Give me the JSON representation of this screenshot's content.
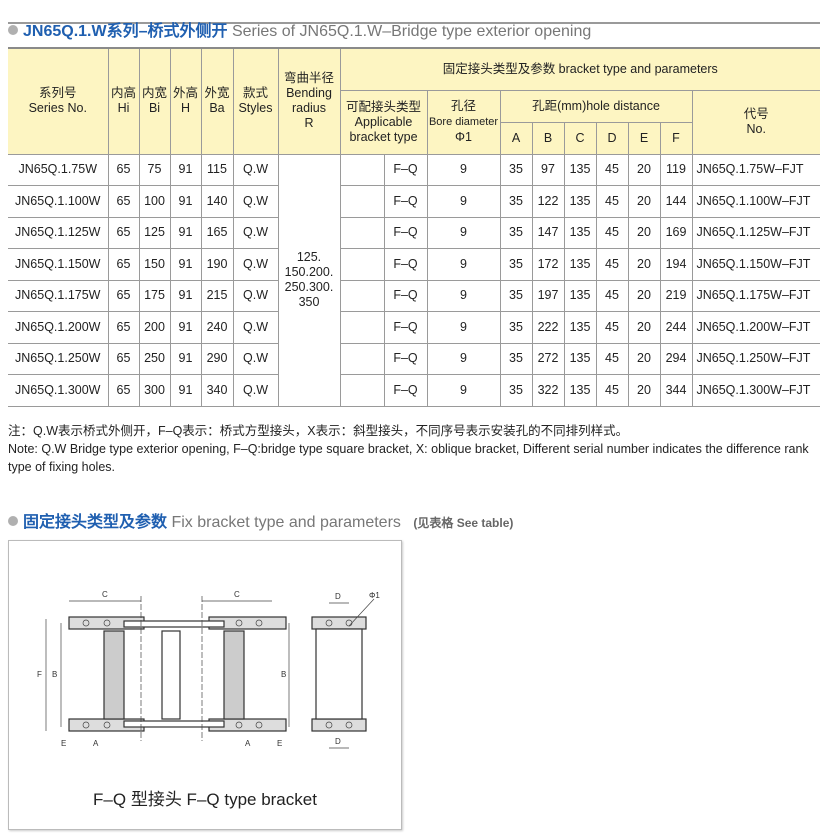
{
  "section1": {
    "title_cn": "JN65Q.1.W系列–桥式外侧开",
    "title_en": "Series of JN65Q.1.W–Bridge type exterior opening"
  },
  "table": {
    "headers": {
      "series_cn": "系列号",
      "series_en": "Series No.",
      "hi_cn": "内高",
      "hi_en": "Hi",
      "bi_cn": "内宽",
      "bi_en": "Bi",
      "h_cn": "外高",
      "h_en": "H",
      "ba_cn": "外宽",
      "ba_en": "Ba",
      "styles_cn": "款式",
      "styles_en": "Styles",
      "r_cn": "弯曲半径",
      "r_en1": "Bending",
      "r_en2": "radius",
      "r_en3": "R",
      "bracket": "固定接头类型及参数 bracket type and parameters",
      "type_cn": "可配接头类型",
      "type_en1": "Applicable",
      "type_en2": "bracket type",
      "bore_cn": "孔径",
      "bore_en": "Bore diameter",
      "bore_sym": "Φ1",
      "hole": "孔距(mm)hole distance",
      "cols": [
        "A",
        "B",
        "C",
        "D",
        "E",
        "F"
      ],
      "no_cn": "代号",
      "no_en": "No."
    },
    "bending_radius": [
      "125.",
      "150.200.",
      "250.300.",
      "350"
    ],
    "rows": [
      {
        "series": "JN65Q.1.75W",
        "hi": "65",
        "bi": "75",
        "h": "91",
        "ba": "115",
        "style": "Q.W",
        "type": "F–Q",
        "bore": "9",
        "a": "35",
        "b": "97",
        "c": "135",
        "d": "45",
        "e": "20",
        "f": "119",
        "no": "JN65Q.1.75W–FJT"
      },
      {
        "series": "JN65Q.1.100W",
        "hi": "65",
        "bi": "100",
        "h": "91",
        "ba": "140",
        "style": "Q.W",
        "type": "F–Q",
        "bore": "9",
        "a": "35",
        "b": "122",
        "c": "135",
        "d": "45",
        "e": "20",
        "f": "144",
        "no": "JN65Q.1.100W–FJT"
      },
      {
        "series": "JN65Q.1.125W",
        "hi": "65",
        "bi": "125",
        "h": "91",
        "ba": "165",
        "style": "Q.W",
        "type": "F–Q",
        "bore": "9",
        "a": "35",
        "b": "147",
        "c": "135",
        "d": "45",
        "e": "20",
        "f": "169",
        "no": "JN65Q.1.125W–FJT"
      },
      {
        "series": "JN65Q.1.150W",
        "hi": "65",
        "bi": "150",
        "h": "91",
        "ba": "190",
        "style": "Q.W",
        "type": "F–Q",
        "bore": "9",
        "a": "35",
        "b": "172",
        "c": "135",
        "d": "45",
        "e": "20",
        "f": "194",
        "no": "JN65Q.1.150W–FJT"
      },
      {
        "series": "JN65Q.1.175W",
        "hi": "65",
        "bi": "175",
        "h": "91",
        "ba": "215",
        "style": "Q.W",
        "type": "F–Q",
        "bore": "9",
        "a": "35",
        "b": "197",
        "c": "135",
        "d": "45",
        "e": "20",
        "f": "219",
        "no": "JN65Q.1.175W–FJT"
      },
      {
        "series": "JN65Q.1.200W",
        "hi": "65",
        "bi": "200",
        "h": "91",
        "ba": "240",
        "style": "Q.W",
        "type": "F–Q",
        "bore": "9",
        "a": "35",
        "b": "222",
        "c": "135",
        "d": "45",
        "e": "20",
        "f": "244",
        "no": "JN65Q.1.200W–FJT"
      },
      {
        "series": "JN65Q.1.250W",
        "hi": "65",
        "bi": "250",
        "h": "91",
        "ba": "290",
        "style": "Q.W",
        "type": "F–Q",
        "bore": "9",
        "a": "35",
        "b": "272",
        "c": "135",
        "d": "45",
        "e": "20",
        "f": "294",
        "no": "JN65Q.1.250W–FJT"
      },
      {
        "series": "JN65Q.1.300W",
        "hi": "65",
        "bi": "300",
        "h": "91",
        "ba": "340",
        "style": "Q.W",
        "type": "F–Q",
        "bore": "9",
        "a": "35",
        "b": "322",
        "c": "135",
        "d": "45",
        "e": "20",
        "f": "344",
        "no": "JN65Q.1.300W–FJT"
      }
    ]
  },
  "note": {
    "cn": "注：Q.W表示桥式外侧开，F–Q表示：桥式方型接头，X表示：斜型接头，不同序号表示安装孔的不同排列样式。",
    "en": "Note: Q.W Bridge type exterior opening, F–Q:bridge type square bracket, X: oblique bracket, Different serial number indicates the difference rank type of fixing holes."
  },
  "section2": {
    "title_cn": "固定接头类型及参数",
    "title_en": "Fix bracket type and parameters",
    "hint": "(见表格 See table)"
  },
  "diagram": {
    "caption": "F–Q 型接头   F–Q type bracket",
    "labels": {
      "c": "C",
      "b": "B",
      "f": "F",
      "a": "A",
      "e": "E",
      "d": "D",
      "phi": "Φ1"
    }
  }
}
